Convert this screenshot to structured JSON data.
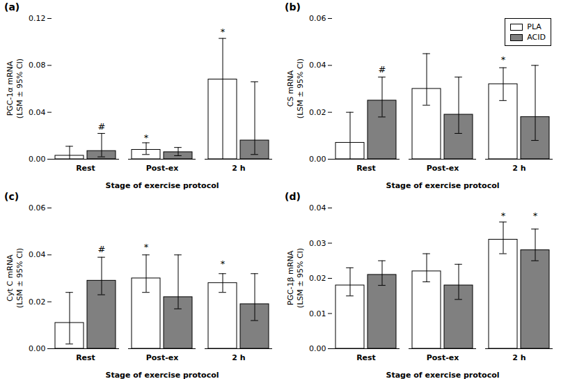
{
  "chart_data": [
    {
      "type": "bar",
      "title": "(a)",
      "x_label": "Stage of exercise protocol",
      "y_label": "PGC-1α mRNA\n(LSM ± 95% CI)",
      "categories": [
        "Rest",
        "Post-ex",
        "2 h"
      ],
      "series": [
        {
          "name": "PLA",
          "color": "#ffffff",
          "values": [
            0.003,
            0.008,
            0.068
          ],
          "err_low": [
            0.003,
            0.004,
            0.068
          ],
          "err_high": [
            0.008,
            0.006,
            0.035
          ]
        },
        {
          "name": "ACID",
          "color": "#808080",
          "values": [
            0.007,
            0.006,
            0.016
          ],
          "err_low": [
            0.005,
            0.003,
            0.012
          ],
          "err_high": [
            0.015,
            0.004,
            0.05
          ]
        }
      ],
      "annotations": [
        {
          "text": "#",
          "category": "Rest",
          "series": "ACID",
          "y": 0.025
        },
        {
          "text": "*",
          "category": "Post-ex",
          "series": "PLA",
          "y": 0.016
        },
        {
          "text": "*",
          "category": "2 h",
          "series": "PLA",
          "y": 0.106
        }
      ],
      "ylim": [
        0,
        0.12
      ],
      "yticks": [
        {
          "value": 0.0,
          "label": "0.00"
        },
        {
          "value": 0.04,
          "label": "0.04"
        },
        {
          "value": 0.08,
          "label": "0.08"
        },
        {
          "value": 0.12,
          "label": "0.12"
        }
      ],
      "grid": false
    },
    {
      "type": "bar",
      "title": "(b)",
      "x_label": "Stage of exercise protocol",
      "y_label": "CS mRNA\n(LSM ± 95% CI)",
      "categories": [
        "Rest",
        "Post-ex",
        "2 h"
      ],
      "series": [
        {
          "name": "PLA",
          "color": "#ffffff",
          "values": [
            0.007,
            0.03,
            0.032
          ],
          "err_low": [
            0.007,
            0.007,
            0.007
          ],
          "err_high": [
            0.013,
            0.015,
            0.007
          ]
        },
        {
          "name": "ACID",
          "color": "#808080",
          "values": [
            0.025,
            0.019,
            0.018
          ],
          "err_low": [
            0.007,
            0.008,
            0.01
          ],
          "err_high": [
            0.01,
            0.016,
            0.022
          ]
        }
      ],
      "annotations": [
        {
          "text": "#",
          "category": "Rest",
          "series": "ACID",
          "y": 0.037
        },
        {
          "text": "*",
          "category": "2 h",
          "series": "PLA",
          "y": 0.041
        }
      ],
      "ylim": [
        0,
        0.06
      ],
      "yticks": [
        {
          "value": 0.0,
          "label": "0.00"
        },
        {
          "value": 0.02,
          "label": "0.02"
        },
        {
          "value": 0.04,
          "label": "0.04"
        },
        {
          "value": 0.06,
          "label": "0.06"
        }
      ],
      "grid": false,
      "legend": "upper right"
    },
    {
      "type": "bar",
      "title": "(c)",
      "x_label": "Stage of exercise protocol",
      "y_label": "Cyt C mRNA\n(LSM ± 95% CI)",
      "categories": [
        "Rest",
        "Post-ex",
        "2 h"
      ],
      "series": [
        {
          "name": "PLA",
          "color": "#ffffff",
          "values": [
            0.011,
            0.03,
            0.028
          ],
          "err_low": [
            0.009,
            0.006,
            0.004
          ],
          "err_high": [
            0.013,
            0.01,
            0.004
          ]
        },
        {
          "name": "ACID",
          "color": "#808080",
          "values": [
            0.029,
            0.022,
            0.019
          ],
          "err_low": [
            0.006,
            0.005,
            0.007
          ],
          "err_high": [
            0.01,
            0.018,
            0.013
          ]
        }
      ],
      "annotations": [
        {
          "text": "#",
          "category": "Rest",
          "series": "ACID",
          "y": 0.041
        },
        {
          "text": "*",
          "category": "Post-ex",
          "series": "PLA",
          "y": 0.042
        },
        {
          "text": "*",
          "category": "2 h",
          "series": "PLA",
          "y": 0.035
        }
      ],
      "ylim": [
        0,
        0.06
      ],
      "yticks": [
        {
          "value": 0.0,
          "label": "0.00"
        },
        {
          "value": 0.02,
          "label": "0.02"
        },
        {
          "value": 0.04,
          "label": "0.04"
        },
        {
          "value": 0.06,
          "label": "0.06"
        }
      ],
      "grid": false
    },
    {
      "type": "bar",
      "title": "(d)",
      "x_label": "Stage of exercise protocol",
      "y_label": "PGC-1β mRNA\n(LSM ± 95% CI)",
      "categories": [
        "Rest",
        "Post-ex",
        "2 h"
      ],
      "series": [
        {
          "name": "PLA",
          "color": "#ffffff",
          "values": [
            0.018,
            0.022,
            0.031
          ],
          "err_low": [
            0.003,
            0.003,
            0.004
          ],
          "err_high": [
            0.005,
            0.005,
            0.005
          ]
        },
        {
          "name": "ACID",
          "color": "#808080",
          "values": [
            0.021,
            0.018,
            0.028
          ],
          "err_low": [
            0.003,
            0.004,
            0.003
          ],
          "err_high": [
            0.004,
            0.006,
            0.006
          ]
        }
      ],
      "annotations": [
        {
          "text": "*",
          "category": "2 h",
          "series": "PLA",
          "y": 0.037
        },
        {
          "text": "*",
          "category": "2 h",
          "series": "ACID",
          "y": 0.037
        }
      ],
      "ylim": [
        0,
        0.04
      ],
      "yticks": [
        {
          "value": 0.0,
          "label": "0.00"
        },
        {
          "value": 0.01,
          "label": "0.01"
        },
        {
          "value": 0.02,
          "label": "0.02"
        },
        {
          "value": 0.03,
          "label": "0.03"
        },
        {
          "value": 0.04,
          "label": "0.04"
        }
      ],
      "grid": false
    }
  ]
}
